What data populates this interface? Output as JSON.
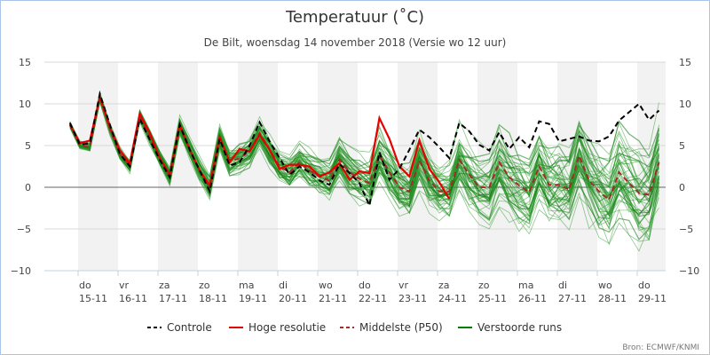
{
  "chart_data": {
    "type": "line",
    "title": "Temperatuur (˚C)",
    "subtitle": "De Bilt, woensdag 14 november 2018 (Versie wo 12 uur)",
    "source": "Bron: ECMWF/KNMI",
    "ylim": [
      -10,
      15
    ],
    "yticks": [
      15,
      10,
      5,
      0,
      -5,
      -10
    ],
    "x_unit": "hours since 15-11 00:00, 6-hourly from 14-11 18:00",
    "x_start_hour": -6,
    "x_step_hours": 6,
    "days": [
      {
        "dow": "do",
        "date": "15-11",
        "shaded": true
      },
      {
        "dow": "vr",
        "date": "16-11",
        "shaded": false
      },
      {
        "dow": "za",
        "date": "17-11",
        "shaded": true
      },
      {
        "dow": "zo",
        "date": "18-11",
        "shaded": false
      },
      {
        "dow": "ma",
        "date": "19-11",
        "shaded": true
      },
      {
        "dow": "di",
        "date": "20-11",
        "shaded": false
      },
      {
        "dow": "wo",
        "date": "21-11",
        "shaded": true
      },
      {
        "dow": "do",
        "date": "22-11",
        "shaded": false
      },
      {
        "dow": "vr",
        "date": "23-11",
        "shaded": true
      },
      {
        "dow": "za",
        "date": "24-11",
        "shaded": false
      },
      {
        "dow": "zo",
        "date": "25-11",
        "shaded": true
      },
      {
        "dow": "ma",
        "date": "26-11",
        "shaded": false
      },
      {
        "dow": "di",
        "date": "27-11",
        "shaded": true
      },
      {
        "dow": "wo",
        "date": "28-11",
        "shaded": false
      },
      {
        "dow": "do",
        "date": "29-11",
        "shaded": true
      }
    ],
    "legend": [
      {
        "key": "control",
        "label": "Controle",
        "color": "#000000",
        "dash": true
      },
      {
        "key": "hires",
        "label": "Hoge resolutie",
        "color": "#e60000",
        "dash": false
      },
      {
        "key": "median",
        "label": "Middelste (P50)",
        "color": "#a52a2a",
        "dash": true
      },
      {
        "key": "ensemble",
        "label": "Verstoorde runs",
        "color": "#008000",
        "dash": false
      }
    ],
    "legend_position": "bottom",
    "series": {
      "control": [
        7.7,
        5.1,
        5.3,
        11.2,
        7.5,
        4,
        2.5,
        8.2,
        5.7,
        3.3,
        1.2,
        7.5,
        4.5,
        2,
        -0.5,
        5.8,
        2.6,
        3,
        5,
        7.8,
        5.5,
        3.5,
        1.5,
        2.5,
        1.8,
        0.8,
        0.3,
        2.8,
        1.7,
        0.5,
        -2.2,
        4.2,
        0.9,
        2.2,
        4.5,
        6.9,
        6,
        4.8,
        3.5,
        7.7,
        6.7,
        5.1,
        4.4,
        6.6,
        4.6,
        6,
        4.8,
        7.9,
        7.6,
        5.5,
        5.8,
        6.1,
        5.6,
        5.5,
        6.1,
        8,
        9,
        10,
        8.1,
        9.2
      ],
      "hires": [
        7.5,
        5.3,
        5.6,
        10.8,
        7.2,
        4.5,
        2.8,
        8.8,
        6.5,
        3.5,
        1.5,
        7.5,
        4.5,
        2,
        0.2,
        6,
        3,
        4.6,
        4.3,
        6.3,
        4.5,
        2.2,
        2.7,
        2.7,
        2.5,
        1.3,
        1.8,
        2.9,
        0.9,
        1.9,
        1.7,
        8.3,
        5.8,
        2.5,
        1.3,
        5.6,
        2.2,
        0.6,
        -1.4
      ],
      "median": [
        7.5,
        5,
        4.8,
        10.8,
        7,
        4,
        2.5,
        8.5,
        6,
        3.5,
        1.2,
        7.3,
        4.5,
        2,
        0,
        5.8,
        3,
        3.5,
        4.3,
        6.5,
        4.5,
        2.5,
        1.8,
        3,
        2,
        1.3,
        0.8,
        3.3,
        1.8,
        1,
        0.5,
        3.8,
        1.8,
        0,
        -0.5,
        3.2,
        0.8,
        -0.5,
        -0.5,
        3.3,
        1.5,
        0,
        0,
        3,
        1.2,
        0.2,
        -0.6,
        2.5,
        0.3,
        0.3,
        -0.3,
        3.8,
        0.8,
        -0.5,
        -1.5,
        1.8,
        0.5,
        -0.7,
        -0.9,
        3
      ],
      "ensemble": {
        "members": 50,
        "spread_start": 0.3,
        "spread_end": 4.5
      }
    }
  }
}
